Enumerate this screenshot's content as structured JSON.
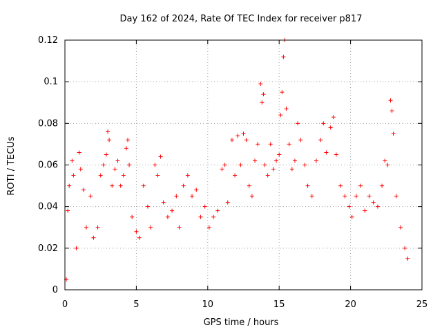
{
  "chart_data": {
    "type": "scatter",
    "title": "Day 162 of 2024, Rate Of TEC Index for receiver p817",
    "xlabel": "GPS time / hours",
    "ylabel": "ROTI / TECUs",
    "xlim": [
      0,
      25
    ],
    "ylim": [
      0,
      0.12
    ],
    "xticks": [
      0,
      5,
      10,
      15,
      20,
      25
    ],
    "xtick_labels": [
      "0",
      "5",
      "10",
      "15",
      "20",
      "25"
    ],
    "yticks": [
      0,
      0.02,
      0.04,
      0.06,
      0.08,
      0.1,
      0.12
    ],
    "ytick_labels": [
      "0",
      "0.02",
      "0.04",
      "0.06",
      "0.08",
      "0.1",
      "0.12"
    ],
    "grid": true,
    "marker": "plus",
    "colors": {
      "points": "#ff0000",
      "grid": "#a0a0a0",
      "axes": "#000000"
    },
    "series": [
      {
        "points": [
          [
            0.1,
            0.005
          ],
          [
            0.2,
            0.038
          ],
          [
            0.3,
            0.05
          ],
          [
            0.5,
            0.062
          ],
          [
            0.6,
            0.055
          ],
          [
            0.8,
            0.02
          ],
          [
            1.0,
            0.066
          ],
          [
            1.1,
            0.058
          ],
          [
            1.3,
            0.048
          ],
          [
            1.5,
            0.03
          ],
          [
            1.8,
            0.045
          ],
          [
            2.0,
            0.025
          ],
          [
            2.3,
            0.03
          ],
          [
            2.5,
            0.055
          ],
          [
            2.7,
            0.06
          ],
          [
            2.9,
            0.065
          ],
          [
            3.0,
            0.076
          ],
          [
            3.1,
            0.072
          ],
          [
            3.3,
            0.05
          ],
          [
            3.5,
            0.058
          ],
          [
            3.7,
            0.062
          ],
          [
            3.9,
            0.05
          ],
          [
            4.1,
            0.055
          ],
          [
            4.3,
            0.068
          ],
          [
            4.4,
            0.072
          ],
          [
            4.5,
            0.06
          ],
          [
            4.7,
            0.035
          ],
          [
            5.0,
            0.028
          ],
          [
            5.2,
            0.025
          ],
          [
            5.5,
            0.05
          ],
          [
            5.8,
            0.04
          ],
          [
            6.0,
            0.03
          ],
          [
            6.3,
            0.06
          ],
          [
            6.5,
            0.055
          ],
          [
            6.7,
            0.064
          ],
          [
            6.9,
            0.042
          ],
          [
            7.2,
            0.035
          ],
          [
            7.5,
            0.038
          ],
          [
            7.8,
            0.045
          ],
          [
            8.0,
            0.03
          ],
          [
            8.3,
            0.05
          ],
          [
            8.6,
            0.055
          ],
          [
            8.9,
            0.045
          ],
          [
            9.2,
            0.048
          ],
          [
            9.5,
            0.035
          ],
          [
            9.8,
            0.04
          ],
          [
            10.1,
            0.03
          ],
          [
            10.4,
            0.035
          ],
          [
            10.7,
            0.038
          ],
          [
            11.0,
            0.058
          ],
          [
            11.2,
            0.06
          ],
          [
            11.4,
            0.042
          ],
          [
            11.7,
            0.072
          ],
          [
            11.9,
            0.055
          ],
          [
            12.1,
            0.074
          ],
          [
            12.3,
            0.06
          ],
          [
            12.5,
            0.075
          ],
          [
            12.7,
            0.072
          ],
          [
            12.9,
            0.05
          ],
          [
            13.1,
            0.045
          ],
          [
            13.3,
            0.062
          ],
          [
            13.5,
            0.07
          ],
          [
            13.7,
            0.099
          ],
          [
            13.8,
            0.09
          ],
          [
            13.9,
            0.094
          ],
          [
            14.0,
            0.06
          ],
          [
            14.2,
            0.055
          ],
          [
            14.4,
            0.07
          ],
          [
            14.6,
            0.058
          ],
          [
            14.8,
            0.062
          ],
          [
            15.0,
            0.065
          ],
          [
            15.1,
            0.084
          ],
          [
            15.2,
            0.095
          ],
          [
            15.3,
            0.112
          ],
          [
            15.4,
            0.12
          ],
          [
            15.5,
            0.087
          ],
          [
            15.7,
            0.07
          ],
          [
            15.9,
            0.058
          ],
          [
            16.1,
            0.062
          ],
          [
            16.3,
            0.08
          ],
          [
            16.5,
            0.072
          ],
          [
            16.8,
            0.06
          ],
          [
            17.0,
            0.05
          ],
          [
            17.3,
            0.045
          ],
          [
            17.6,
            0.062
          ],
          [
            17.9,
            0.072
          ],
          [
            18.1,
            0.08
          ],
          [
            18.3,
            0.066
          ],
          [
            18.6,
            0.078
          ],
          [
            18.8,
            0.083
          ],
          [
            19.0,
            0.065
          ],
          [
            19.3,
            0.05
          ],
          [
            19.6,
            0.045
          ],
          [
            19.9,
            0.04
          ],
          [
            20.1,
            0.035
          ],
          [
            20.4,
            0.045
          ],
          [
            20.7,
            0.05
          ],
          [
            21.0,
            0.038
          ],
          [
            21.3,
            0.045
          ],
          [
            21.6,
            0.042
          ],
          [
            21.9,
            0.04
          ],
          [
            22.2,
            0.05
          ],
          [
            22.4,
            0.062
          ],
          [
            22.6,
            0.06
          ],
          [
            22.8,
            0.091
          ],
          [
            22.9,
            0.086
          ],
          [
            23.0,
            0.075
          ],
          [
            23.2,
            0.045
          ],
          [
            23.5,
            0.03
          ],
          [
            23.8,
            0.02
          ],
          [
            24.0,
            0.015
          ]
        ]
      }
    ]
  }
}
